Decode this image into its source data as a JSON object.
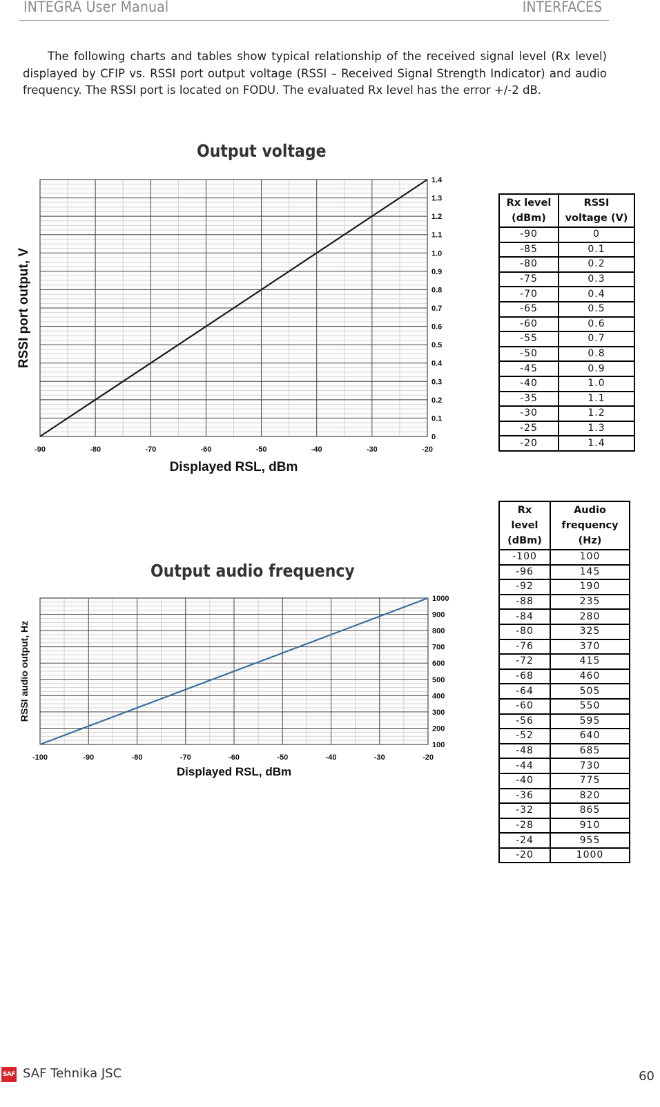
{
  "header": {
    "left": "INTEGRA User Manual",
    "right": "INTERFACES"
  },
  "intro": "The following charts and tables show typical relationship of the received signal level (Rx level) displayed by CFIP vs. RSSI port output voltage (RSSI – Received Signal Strength Indicator) and audio frequency. The RSSI port is located on FODU. The evaluated Rx level has the error +/-2 dB.",
  "voltage_chart": {
    "title": "Output voltage",
    "xlabel": "Displayed RSL, dBm",
    "ylabel": "RSSI port output, V"
  },
  "audio_chart": {
    "title": "Output audio frequency",
    "xlabel": "Displayed RSL, dBm",
    "ylabel": "RSSI audio output, Hz"
  },
  "voltage_table": {
    "headers": [
      "Rx level (dBm)",
      "RSSI voltage (V)"
    ],
    "header_lines": [
      [
        "Rx level",
        "(dBm)"
      ],
      [
        "RSSI",
        "voltage (V)"
      ]
    ],
    "rows": [
      [
        "-90",
        "0"
      ],
      [
        "-85",
        "0.1"
      ],
      [
        "-80",
        "0.2"
      ],
      [
        "-75",
        "0.3"
      ],
      [
        "-70",
        "0.4"
      ],
      [
        "-65",
        "0.5"
      ],
      [
        "-60",
        "0.6"
      ],
      [
        "-55",
        "0.7"
      ],
      [
        "-50",
        "0.8"
      ],
      [
        "-45",
        "0.9"
      ],
      [
        "-40",
        "1.0"
      ],
      [
        "-35",
        "1.1"
      ],
      [
        "-30",
        "1.2"
      ],
      [
        "-25",
        "1.3"
      ],
      [
        "-20",
        "1.4"
      ]
    ]
  },
  "audio_table": {
    "headers": [
      "Rx level (dBm)",
      "Audio frequency (Hz)"
    ],
    "header_lines": [
      [
        "Rx",
        "level",
        "(dBm)"
      ],
      [
        "Audio",
        "frequency",
        "(Hz)"
      ]
    ],
    "rows": [
      [
        "-100",
        "100"
      ],
      [
        "-96",
        "145"
      ],
      [
        "-92",
        "190"
      ],
      [
        "-88",
        "235"
      ],
      [
        "-84",
        "280"
      ],
      [
        "-80",
        "325"
      ],
      [
        "-76",
        "370"
      ],
      [
        "-72",
        "415"
      ],
      [
        "-68",
        "460"
      ],
      [
        "-64",
        "505"
      ],
      [
        "-60",
        "550"
      ],
      [
        "-56",
        "595"
      ],
      [
        "-52",
        "640"
      ],
      [
        "-48",
        "685"
      ],
      [
        "-44",
        "730"
      ],
      [
        "-40",
        "775"
      ],
      [
        "-36",
        "820"
      ],
      [
        "-32",
        "865"
      ],
      [
        "-28",
        "910"
      ],
      [
        "-24",
        "955"
      ],
      [
        "-20",
        "1000"
      ]
    ]
  },
  "footer": {
    "logo_text": "SAF",
    "company": "SAF Tehnika JSC",
    "page": "60"
  },
  "colors": {
    "voltage_line": "#1a1a1a",
    "audio_line": "#3a6f9e",
    "logo_red": "#d8232a",
    "header_gray": "#8a8a8a"
  },
  "chart_data": [
    {
      "type": "line",
      "title": "Output voltage",
      "xlabel": "Displayed RSL, dBm",
      "ylabel": "RSSI port output, V",
      "xlim": [
        -90,
        -20
      ],
      "ylim": [
        0,
        1.4
      ],
      "x_ticks": [
        -90,
        -80,
        -70,
        -60,
        -50,
        -40,
        -30,
        -20
      ],
      "y_ticks": [
        0,
        0.1,
        0.2,
        0.3,
        0.4,
        0.5,
        0.6,
        0.7,
        0.8,
        0.9,
        1.0,
        1.1,
        1.2,
        1.3,
        1.4
      ],
      "grid": true,
      "y_axis_position": "right",
      "series": [
        {
          "name": "RSSI voltage",
          "x": [
            -90,
            -20
          ],
          "values": [
            0,
            1.4
          ]
        }
      ]
    },
    {
      "type": "line",
      "title": "Output audio frequency",
      "xlabel": "Displayed RSL, dBm",
      "ylabel": "RSSI audio output, Hz",
      "xlim": [
        -100,
        -20
      ],
      "ylim": [
        100,
        1000
      ],
      "x_ticks": [
        -100,
        -90,
        -80,
        -70,
        -60,
        -50,
        -40,
        -30,
        -20
      ],
      "y_ticks": [
        100,
        200,
        300,
        400,
        500,
        600,
        700,
        800,
        900,
        1000
      ],
      "grid": true,
      "y_axis_position": "right",
      "series": [
        {
          "name": "Audio frequency",
          "x": [
            -100,
            -20
          ],
          "values": [
            100,
            1000
          ]
        }
      ]
    }
  ]
}
